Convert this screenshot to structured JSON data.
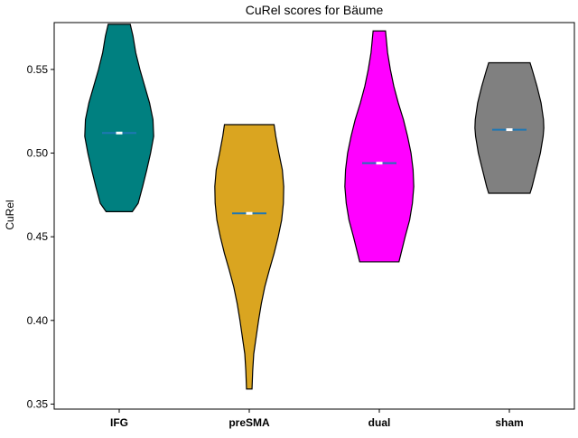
{
  "chart_data": {
    "type": "violin",
    "title": "CuRel scores for Bäume",
    "xlabel": "",
    "ylabel": "CuRel",
    "categories": [
      "IFG",
      "preSMA",
      "dual",
      "sham"
    ],
    "colors": [
      "#008080",
      "#DAA520",
      "#FF00FF",
      "#808080"
    ],
    "median_color": "#1f77b4",
    "ylim": [
      0.347,
      0.578
    ],
    "yticks": [
      0.35,
      0.4,
      0.45,
      0.5,
      0.55
    ],
    "ytick_labels": [
      "0.35",
      "0.40",
      "0.45",
      "0.50",
      "0.55"
    ],
    "grid": false,
    "series": [
      {
        "category": "IFG",
        "min": 0.465,
        "max": 0.577,
        "median": 0.512,
        "profile": [
          [
            0.465,
            0.38
          ],
          [
            0.47,
            0.55
          ],
          [
            0.48,
            0.68
          ],
          [
            0.49,
            0.8
          ],
          [
            0.5,
            0.91
          ],
          [
            0.51,
            1.0
          ],
          [
            0.52,
            0.98
          ],
          [
            0.53,
            0.88
          ],
          [
            0.54,
            0.74
          ],
          [
            0.55,
            0.6
          ],
          [
            0.56,
            0.48
          ],
          [
            0.57,
            0.4
          ],
          [
            0.577,
            0.32
          ]
        ]
      },
      {
        "category": "preSMA",
        "min": 0.359,
        "max": 0.517,
        "median": 0.464,
        "profile": [
          [
            0.359,
            0.08
          ],
          [
            0.37,
            0.1
          ],
          [
            0.38,
            0.13
          ],
          [
            0.39,
            0.2
          ],
          [
            0.4,
            0.27
          ],
          [
            0.41,
            0.35
          ],
          [
            0.42,
            0.45
          ],
          [
            0.43,
            0.58
          ],
          [
            0.44,
            0.72
          ],
          [
            0.45,
            0.84
          ],
          [
            0.46,
            0.94
          ],
          [
            0.47,
            0.99
          ],
          [
            0.48,
            1.0
          ],
          [
            0.49,
            0.96
          ],
          [
            0.5,
            0.86
          ],
          [
            0.51,
            0.77
          ],
          [
            0.517,
            0.72
          ]
        ]
      },
      {
        "category": "dual",
        "min": 0.435,
        "max": 0.573,
        "median": 0.494,
        "profile": [
          [
            0.435,
            0.57
          ],
          [
            0.44,
            0.63
          ],
          [
            0.45,
            0.75
          ],
          [
            0.46,
            0.88
          ],
          [
            0.47,
            0.96
          ],
          [
            0.48,
            1.0
          ],
          [
            0.49,
            0.98
          ],
          [
            0.5,
            0.92
          ],
          [
            0.51,
            0.82
          ],
          [
            0.52,
            0.7
          ],
          [
            0.53,
            0.55
          ],
          [
            0.54,
            0.42
          ],
          [
            0.55,
            0.32
          ],
          [
            0.56,
            0.24
          ],
          [
            0.573,
            0.18
          ]
        ]
      },
      {
        "category": "sham",
        "min": 0.476,
        "max": 0.554,
        "median": 0.514,
        "profile": [
          [
            0.476,
            0.6
          ],
          [
            0.48,
            0.66
          ],
          [
            0.49,
            0.78
          ],
          [
            0.5,
            0.9
          ],
          [
            0.51,
            0.98
          ],
          [
            0.515,
            1.0
          ],
          [
            0.52,
            0.99
          ],
          [
            0.53,
            0.92
          ],
          [
            0.54,
            0.8
          ],
          [
            0.55,
            0.66
          ],
          [
            0.554,
            0.6
          ]
        ]
      }
    ]
  }
}
